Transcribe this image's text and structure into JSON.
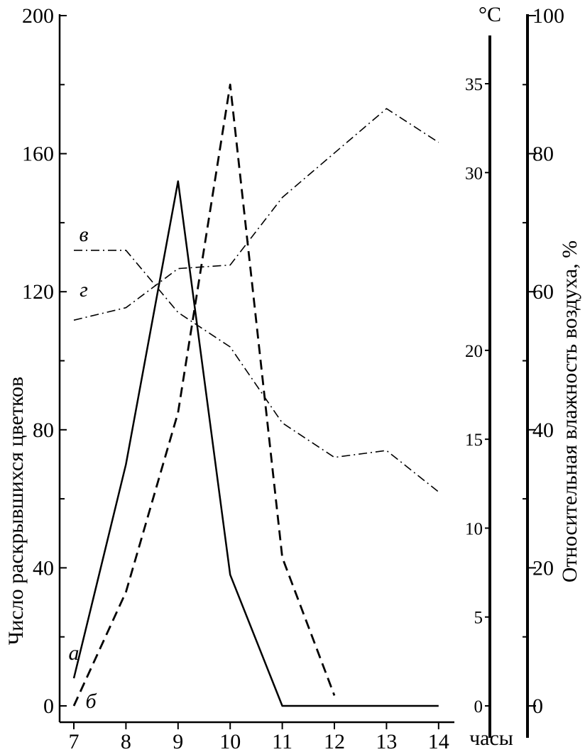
{
  "chart_data": {
    "type": "line",
    "x_unit_label": "часы",
    "x": [
      7,
      8,
      9,
      10,
      11,
      12,
      13,
      14
    ],
    "left_axis": {
      "label": "Число раскрывшихся цветков",
      "ylim": [
        0,
        200
      ],
      "ticks": [
        0,
        40,
        80,
        120,
        160,
        200
      ],
      "tick_labels": [
        "0",
        "40",
        "80",
        "120",
        "160",
        "200"
      ]
    },
    "temp_axis": {
      "unit": "°C",
      "ylim": [
        0,
        35
      ],
      "ticks": [
        0,
        5,
        10,
        15,
        20,
        30,
        35
      ],
      "tick_labels": [
        "0",
        "5",
        "10",
        "15",
        "20",
        "30",
        "35"
      ]
    },
    "humidity_axis": {
      "label": "Относительная влажность воздуха, %",
      "ylim": [
        0,
        100
      ],
      "ticks": [
        0,
        20,
        40,
        60,
        80,
        100
      ],
      "tick_labels": [
        "0",
        "20",
        "40",
        "60",
        "80",
        "100"
      ]
    },
    "series": [
      {
        "name": "а",
        "axis": "left",
        "style": "solid",
        "points": [
          [
            7,
            8
          ],
          [
            8,
            70
          ],
          [
            9,
            152
          ],
          [
            10,
            38
          ],
          [
            11,
            0
          ],
          [
            12,
            0
          ],
          [
            13,
            0
          ],
          [
            14,
            0
          ]
        ]
      },
      {
        "name": "б",
        "axis": "left",
        "style": "dashed",
        "points": [
          [
            7,
            0
          ],
          [
            8,
            33
          ],
          [
            9,
            85
          ],
          [
            10,
            180
          ],
          [
            11,
            43
          ],
          [
            12,
            3
          ]
        ]
      },
      {
        "name": "в",
        "axis": "humidity",
        "style": "dashdot",
        "points": [
          [
            7,
            66
          ],
          [
            8,
            66
          ],
          [
            9,
            57
          ],
          [
            10,
            52
          ],
          [
            11,
            41
          ],
          [
            12,
            36
          ],
          [
            13,
            37
          ],
          [
            14,
            31
          ]
        ]
      },
      {
        "name": "г",
        "axis": "temp",
        "style": "dashdot",
        "points": [
          [
            7,
            21.7
          ],
          [
            8,
            22.4
          ],
          [
            9,
            24.6
          ],
          [
            10,
            24.8
          ],
          [
            11,
            28.6
          ],
          [
            12,
            31.1
          ],
          [
            13,
            33.6
          ],
          [
            14,
            31.7
          ]
        ]
      }
    ]
  }
}
